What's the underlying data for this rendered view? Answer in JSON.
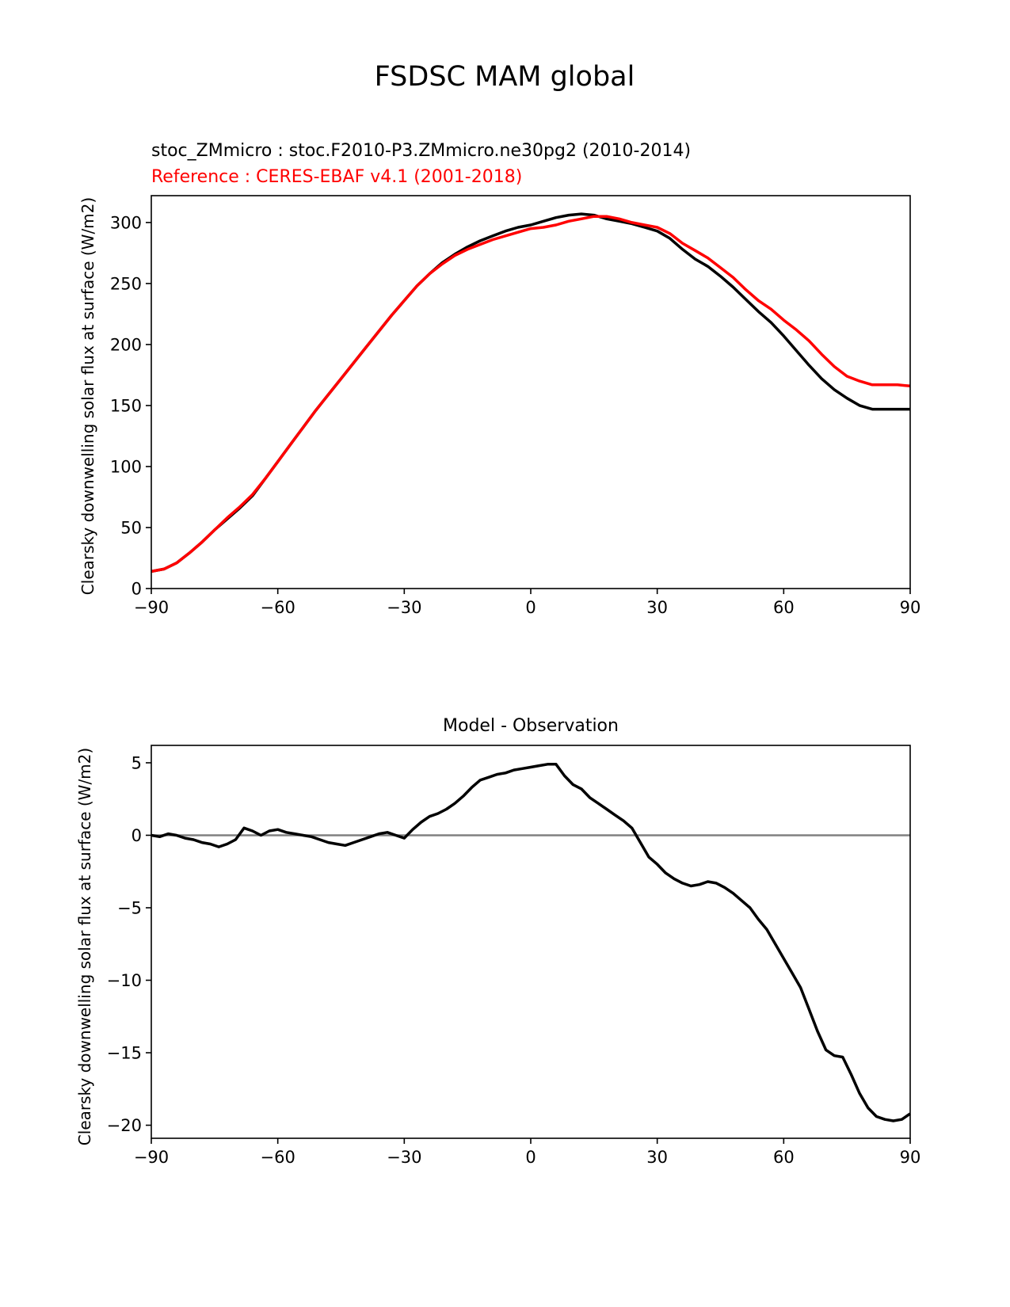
{
  "figure": {
    "suptitle": "FSDSC MAM global"
  },
  "chart_data": [
    {
      "type": "line",
      "title_left_1": "stoc_ZMmicro : stoc.F2010-P3.ZMmicro.ne30pg2 (2010-2014)",
      "title_left_2": "Reference : CERES-EBAF v4.1 (2001-2018)",
      "title_center": "",
      "xlabel": "",
      "ylabel": "Clearsky downwelling solar flux at surface (W/m2)",
      "xlim": [
        -90,
        90
      ],
      "ylim": [
        0,
        322
      ],
      "xticks": [
        -90,
        -60,
        -30,
        0,
        30,
        60,
        90
      ],
      "xtick_labels": [
        "−90",
        "−60",
        "−30",
        "0",
        "30",
        "60",
        "90"
      ],
      "yticks": [
        0,
        50,
        100,
        150,
        200,
        250,
        300
      ],
      "ytick_labels": [
        "0",
        "50",
        "100",
        "150",
        "200",
        "250",
        "300"
      ],
      "grid": false,
      "legend": false,
      "series": [
        {
          "color": "#000000",
          "x": [
            -90,
            -87,
            -84,
            -81,
            -78,
            -75,
            -72,
            -69,
            -66,
            -63,
            -60,
            -57,
            -54,
            -51,
            -48,
            -45,
            -42,
            -39,
            -36,
            -33,
            -30,
            -27,
            -24,
            -21,
            -18,
            -15,
            -12,
            -9,
            -6,
            -3,
            0,
            3,
            6,
            9,
            12,
            15,
            18,
            21,
            24,
            27,
            30,
            33,
            36,
            39,
            42,
            45,
            48,
            51,
            54,
            57,
            60,
            63,
            66,
            69,
            72,
            75,
            78,
            81,
            84,
            87,
            90
          ],
          "y": [
            14,
            16,
            21,
            29,
            38,
            48,
            57,
            66,
            76,
            90,
            104,
            118,
            132,
            146,
            159,
            172,
            185,
            198,
            211,
            224,
            236,
            248,
            258,
            267,
            274,
            280,
            285,
            289,
            293,
            296,
            298,
            301,
            304,
            306,
            307,
            306,
            303,
            301,
            299,
            296,
            293,
            287,
            278,
            270,
            264,
            256,
            247,
            237,
            227,
            218,
            207,
            195,
            183,
            172,
            163,
            156,
            150,
            147,
            147,
            147,
            147
          ]
        },
        {
          "color": "#ff0000",
          "x": [
            -90,
            -87,
            -84,
            -81,
            -78,
            -75,
            -72,
            -69,
            -66,
            -63,
            -60,
            -57,
            -54,
            -51,
            -48,
            -45,
            -42,
            -39,
            -36,
            -33,
            -30,
            -27,
            -24,
            -21,
            -18,
            -15,
            -12,
            -9,
            -6,
            -3,
            0,
            3,
            6,
            9,
            12,
            15,
            18,
            21,
            24,
            27,
            30,
            33,
            36,
            39,
            42,
            45,
            48,
            51,
            54,
            57,
            60,
            63,
            66,
            69,
            72,
            75,
            78,
            81,
            84,
            87,
            90
          ],
          "y": [
            14,
            16,
            21,
            29,
            38,
            48,
            58,
            67,
            77,
            90,
            104,
            118,
            132,
            146,
            159,
            172,
            185,
            198,
            211,
            224,
            236,
            248,
            258,
            266,
            273,
            278,
            282,
            286,
            289,
            292,
            295,
            296,
            298,
            301,
            303,
            305,
            305,
            303,
            300,
            298,
            296,
            291,
            283,
            277,
            271,
            263,
            255,
            245,
            236,
            229,
            220,
            212,
            203,
            192,
            182,
            174,
            170,
            167,
            167,
            167,
            166
          ]
        }
      ]
    },
    {
      "type": "line",
      "title_left_1": "",
      "title_left_2": "",
      "title_center": "Model - Observation",
      "xlabel": "",
      "ylabel": "Clearsky downwelling solar flux at surface (W/m2)",
      "xlim": [
        -90,
        90
      ],
      "ylim": [
        -20.9,
        6.2
      ],
      "xticks": [
        -90,
        -60,
        -30,
        0,
        30,
        60,
        90
      ],
      "xtick_labels": [
        "−90",
        "−60",
        "−30",
        "0",
        "30",
        "60",
        "90"
      ],
      "yticks": [
        -20,
        -15,
        -10,
        -5,
        0,
        5
      ],
      "ytick_labels": [
        "−20",
        "−15",
        "−10",
        "−5",
        "0",
        "5"
      ],
      "grid": false,
      "legend": false,
      "zero_line_color": "#808080",
      "series": [
        {
          "color": "#000000",
          "x": [
            -90,
            -88,
            -86,
            -84,
            -82,
            -80,
            -78,
            -76,
            -74,
            -72,
            -70,
            -68,
            -66,
            -64,
            -62,
            -60,
            -58,
            -56,
            -54,
            -52,
            -50,
            -48,
            -46,
            -44,
            -42,
            -40,
            -38,
            -36,
            -34,
            -32,
            -30,
            -28,
            -26,
            -24,
            -22,
            -20,
            -18,
            -16,
            -14,
            -12,
            -10,
            -8,
            -6,
            -4,
            -2,
            0,
            2,
            4,
            6,
            8,
            10,
            12,
            14,
            16,
            18,
            20,
            22,
            24,
            26,
            28,
            30,
            32,
            34,
            36,
            38,
            40,
            42,
            44,
            46,
            48,
            50,
            52,
            54,
            56,
            58,
            60,
            62,
            64,
            66,
            68,
            70,
            72,
            74,
            76,
            78,
            80,
            82,
            84,
            86,
            88,
            90
          ],
          "y": [
            0.0,
            -0.1,
            0.1,
            0.0,
            -0.2,
            -0.3,
            -0.5,
            -0.6,
            -0.8,
            -0.6,
            -0.3,
            0.5,
            0.3,
            0.0,
            0.3,
            0.4,
            0.2,
            0.1,
            0.0,
            -0.1,
            -0.3,
            -0.5,
            -0.6,
            -0.7,
            -0.5,
            -0.3,
            -0.1,
            0.1,
            0.2,
            0.0,
            -0.2,
            0.4,
            0.9,
            1.3,
            1.5,
            1.8,
            2.2,
            2.7,
            3.3,
            3.8,
            4.0,
            4.2,
            4.3,
            4.5,
            4.6,
            4.7,
            4.8,
            4.9,
            4.9,
            4.1,
            3.5,
            3.2,
            2.6,
            2.2,
            1.8,
            1.4,
            1.0,
            0.5,
            -0.5,
            -1.5,
            -2.0,
            -2.6,
            -3.0,
            -3.3,
            -3.5,
            -3.4,
            -3.2,
            -3.3,
            -3.6,
            -4.0,
            -4.5,
            -5.0,
            -5.8,
            -6.5,
            -7.5,
            -8.5,
            -9.5,
            -10.5,
            -12.0,
            -13.5,
            -14.8,
            -15.2,
            -15.3,
            -16.5,
            -17.8,
            -18.8,
            -19.4,
            -19.6,
            -19.7,
            -19.6,
            -19.2
          ]
        }
      ]
    }
  ]
}
